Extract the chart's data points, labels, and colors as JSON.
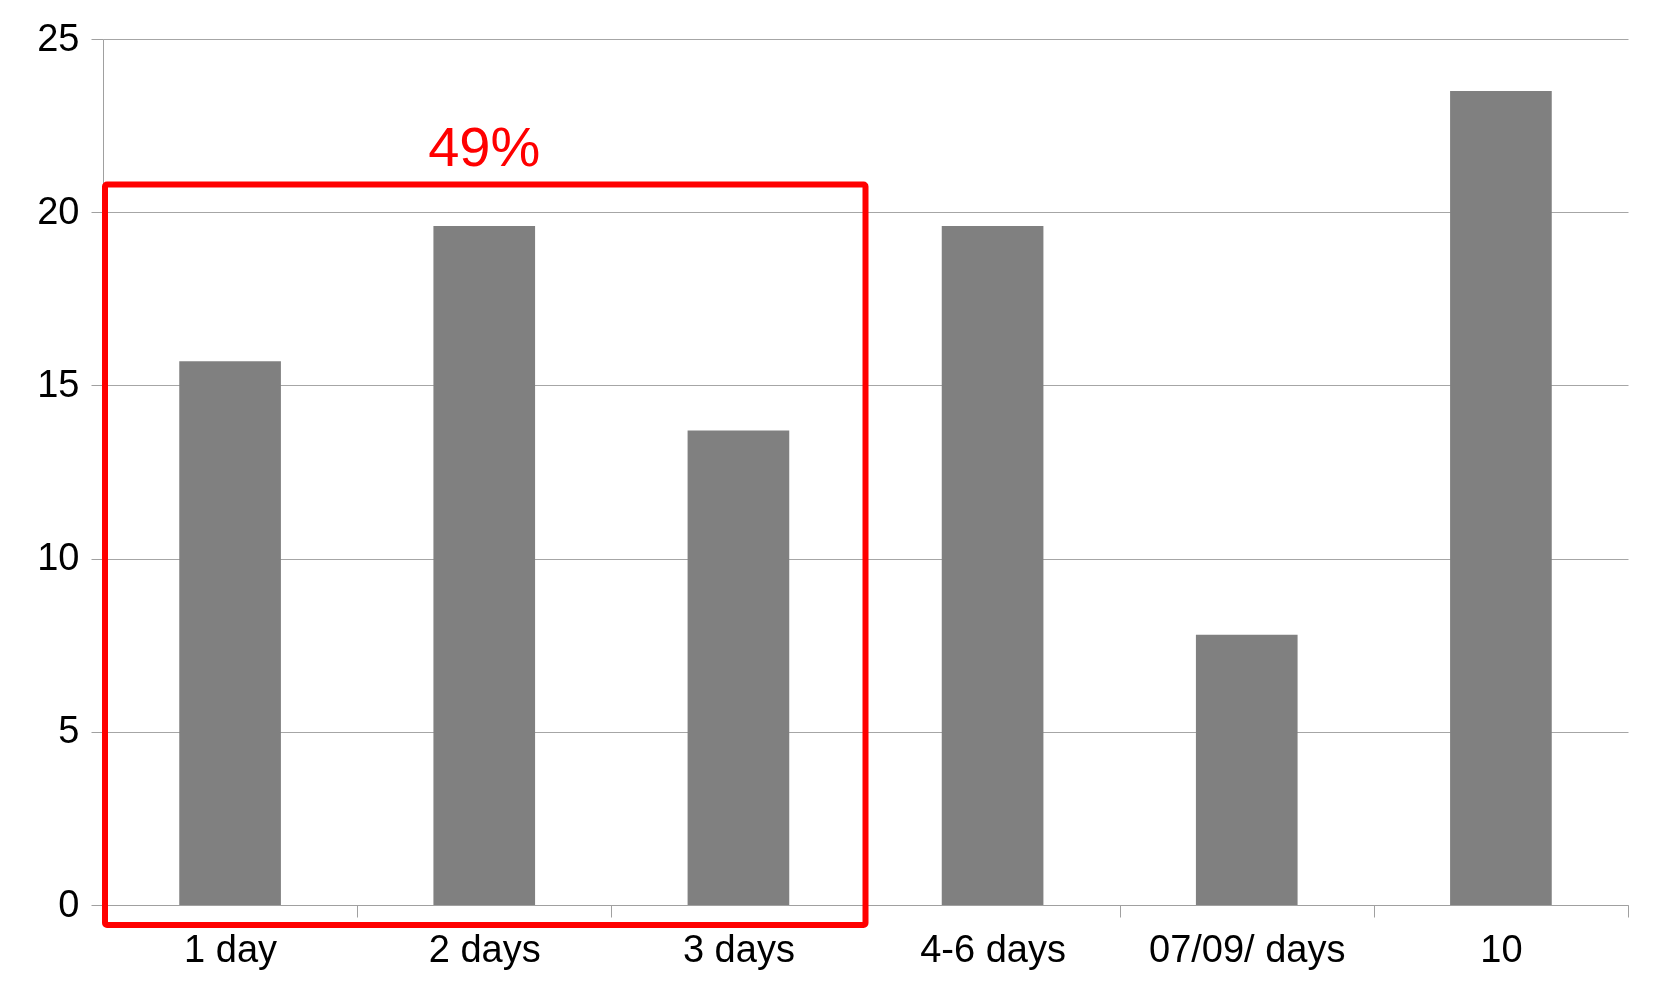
{
  "chart_data": {
    "type": "bar",
    "categories": [
      "1 day",
      "2 days",
      "3 days",
      "4-6 days",
      "07/09/ days",
      "10"
    ],
    "values": [
      15.7,
      19.6,
      13.7,
      19.6,
      7.8,
      23.5
    ],
    "color": "#808080",
    "ylim": [
      0,
      25
    ],
    "yticks": [
      0,
      5,
      10,
      15,
      20,
      25
    ],
    "grid": "y",
    "annotations": [
      "49%"
    ]
  }
}
